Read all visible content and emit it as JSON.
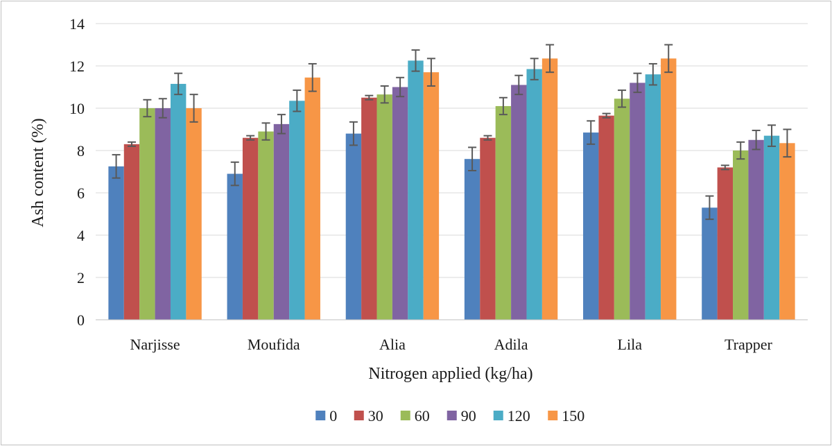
{
  "chart_data": {
    "type": "bar",
    "title": "",
    "xlabel": "Nitrogen applied (kg/ha)",
    "ylabel": "Ash content (%)",
    "ylim": [
      0,
      14
    ],
    "yticks": [
      0,
      2,
      4,
      6,
      8,
      10,
      12,
      14
    ],
    "grid": true,
    "legend_position": "bottom",
    "categories": [
      "Narjisse",
      "Moufida",
      "Alia",
      "Adila",
      "Lila",
      "Trapper"
    ],
    "series": [
      {
        "name": "0",
        "color": "#4f81bd",
        "values": [
          7.25,
          6.9,
          8.8,
          7.6,
          8.85,
          5.3
        ],
        "errors": [
          0.55,
          0.55,
          0.55,
          0.55,
          0.55,
          0.55
        ]
      },
      {
        "name": "30",
        "color": "#c0504d",
        "values": [
          8.3,
          8.6,
          10.5,
          8.6,
          9.65,
          7.2
        ],
        "errors": [
          0.1,
          0.1,
          0.1,
          0.1,
          0.1,
          0.1
        ]
      },
      {
        "name": "60",
        "color": "#9bbb59",
        "values": [
          10.0,
          8.9,
          10.65,
          10.1,
          10.45,
          8.0
        ],
        "errors": [
          0.4,
          0.4,
          0.4,
          0.4,
          0.4,
          0.4
        ]
      },
      {
        "name": "90",
        "color": "#8064a2",
        "values": [
          10.0,
          9.25,
          11.0,
          11.1,
          11.2,
          8.5
        ],
        "errors": [
          0.45,
          0.45,
          0.45,
          0.45,
          0.45,
          0.45
        ]
      },
      {
        "name": "120",
        "color": "#4bacc6",
        "values": [
          11.15,
          10.35,
          12.25,
          11.85,
          11.6,
          8.7
        ],
        "errors": [
          0.5,
          0.5,
          0.5,
          0.5,
          0.5,
          0.5
        ]
      },
      {
        "name": "150",
        "color": "#f79646",
        "values": [
          10.0,
          11.45,
          11.7,
          12.35,
          12.35,
          8.35
        ],
        "errors": [
          0.65,
          0.65,
          0.65,
          0.65,
          0.65,
          0.65
        ]
      }
    ],
    "colors": {
      "gridline": "#d9d9d9",
      "axis": "#bfbfbf",
      "error_bar": "#595959"
    }
  }
}
